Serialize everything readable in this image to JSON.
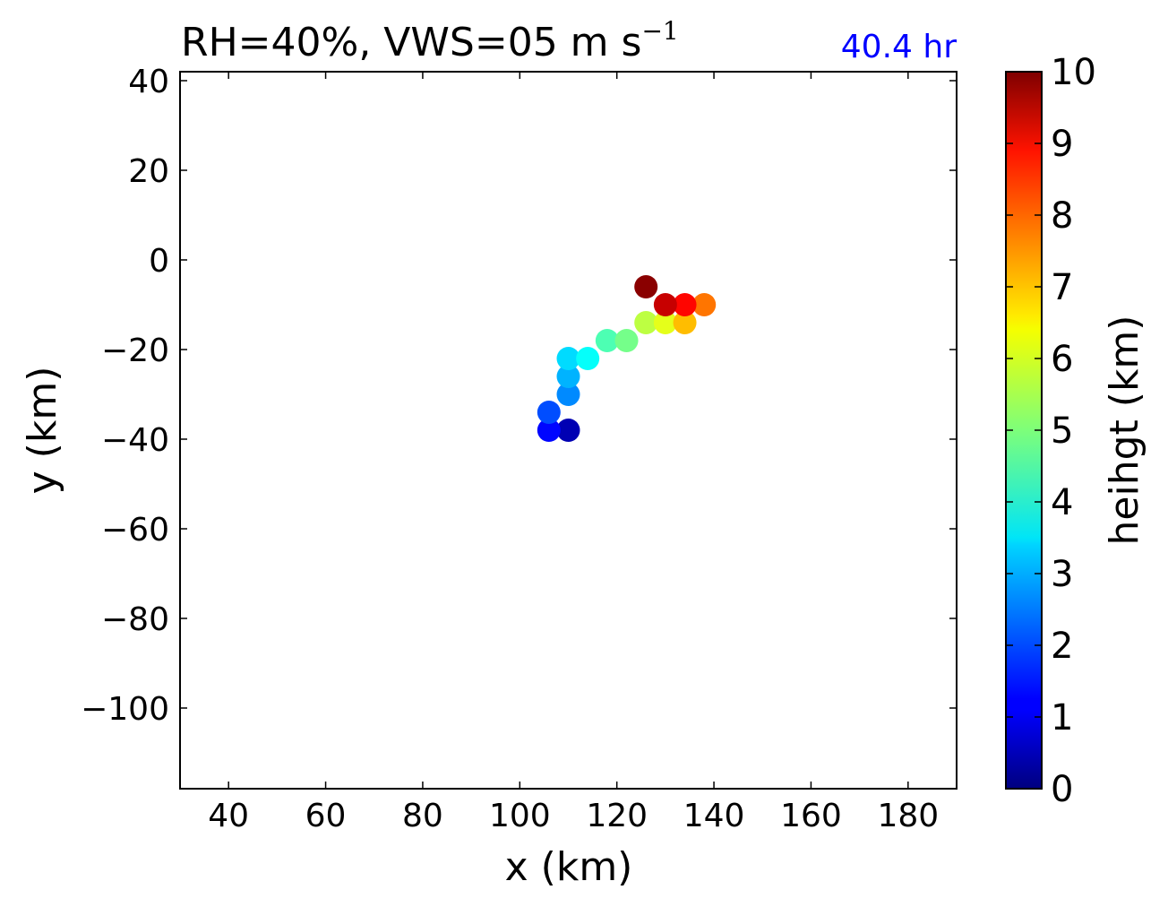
{
  "title": {
    "main": "RH=40%, VWS=05 m s",
    "superscript": "−1",
    "time_label": "40.4 hr",
    "time_label_color": "#0000ff"
  },
  "chart_data": {
    "type": "scatter",
    "xlabel": "x (km)",
    "ylabel": "y (km)",
    "xlim": [
      30,
      190
    ],
    "ylim": [
      -118,
      42
    ],
    "xticks": [
      40,
      60,
      80,
      100,
      120,
      140,
      160,
      180
    ],
    "yticks": [
      40,
      20,
      0,
      -20,
      -40,
      -60,
      -80,
      -100
    ],
    "grid": false,
    "points": [
      {
        "x": 110,
        "y": -38,
        "height": 0.5
      },
      {
        "x": 106,
        "y": -38,
        "height": 1.3
      },
      {
        "x": 106,
        "y": -34,
        "height": 2.0
      },
      {
        "x": 110,
        "y": -30,
        "height": 2.6
      },
      {
        "x": 110,
        "y": -26,
        "height": 3.0
      },
      {
        "x": 110,
        "y": -22,
        "height": 3.4
      },
      {
        "x": 114,
        "y": -22,
        "height": 3.8
      },
      {
        "x": 118,
        "y": -18,
        "height": 4.5
      },
      {
        "x": 122,
        "y": -18,
        "height": 4.9
      },
      {
        "x": 126,
        "y": -14,
        "height": 5.6
      },
      {
        "x": 130,
        "y": -14,
        "height": 6.0
      },
      {
        "x": 134,
        "y": -14,
        "height": 6.9
      },
      {
        "x": 138,
        "y": -10,
        "height": 7.6
      },
      {
        "x": 134,
        "y": -10,
        "height": 8.7
      },
      {
        "x": 130,
        "y": -10,
        "height": 9.3
      },
      {
        "x": 126,
        "y": -6,
        "height": 9.9
      }
    ],
    "colorbar": {
      "label": "heihgt (km)",
      "min": 0,
      "max": 10,
      "ticks": [
        "0",
        "1",
        "2",
        "3",
        "4",
        "5",
        "6",
        "7",
        "8",
        "9",
        "10"
      ],
      "colormap": "jet"
    }
  }
}
